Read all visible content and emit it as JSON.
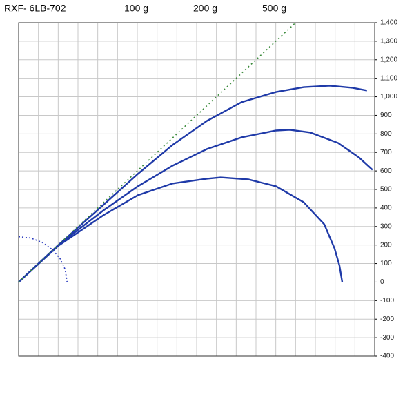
{
  "chart_data": {
    "type": "line",
    "title": "RXF- 6LB-702",
    "xlim": [
      0,
      1800
    ],
    "ylim": [
      -400,
      1400
    ],
    "xticks": [
      0,
      100,
      200,
      300,
      400,
      500,
      600,
      700,
      800,
      900,
      1000,
      1100,
      1200,
      1300,
      1400,
      1500,
      1600,
      1700,
      1800
    ],
    "yticks": [
      -400,
      -300,
      -200,
      -100,
      0,
      100,
      200,
      300,
      400,
      500,
      600,
      700,
      800,
      900,
      {
        "value": 1000,
        "label": "1,000"
      },
      {
        "value": 1100,
        "label": "1,100"
      },
      {
        "value": 1200,
        "label": "1,200"
      },
      {
        "value": 1300,
        "label": "1,300"
      },
      {
        "value": 1400,
        "label": "1,400"
      }
    ],
    "grid": true,
    "y_axis_side": "right",
    "series": [
      {
        "name": "100 g",
        "color": "#1f3aa8",
        "x": [
          0,
          202,
          429,
          603,
          778,
          952,
          1127,
          1301,
          1441,
          1573,
          1685,
          1761
        ],
        "values": [
          0,
          201,
          417,
          584,
          740,
          870,
          971,
          1026,
          1052,
          1060,
          1049,
          1034
        ]
      },
      {
        "name": "200 g",
        "color": "#1f3aa8",
        "x": [
          0,
          202,
          429,
          603,
          778,
          952,
          1127,
          1301,
          1371,
          1475,
          1615,
          1720,
          1789
        ],
        "values": [
          0,
          201,
          387,
          517,
          628,
          718,
          781,
          818,
          822,
          807,
          751,
          673,
          606
        ]
      },
      {
        "name": "500 g",
        "color": "#1f3aa8",
        "x": [
          0,
          202,
          429,
          603,
          778,
          952,
          1022,
          1162,
          1301,
          1441,
          1545,
          1597,
          1622,
          1636
        ],
        "values": [
          0,
          197,
          361,
          469,
          532,
          558,
          565,
          554,
          517,
          431,
          312,
          182,
          89,
          0
        ]
      },
      {
        "color": "#3a8a3a",
        "dash": "2,4",
        "x": [
          0,
          1400
        ],
        "values": [
          0,
          1400
        ]
      },
      {
        "color": "#2b3bbf",
        "dash": "2,3",
        "x": [
          0,
          60,
          120,
          170,
          210,
          235,
          245
        ],
        "values": [
          245,
          238,
          214,
          176,
          126,
          69,
          0
        ]
      }
    ]
  }
}
